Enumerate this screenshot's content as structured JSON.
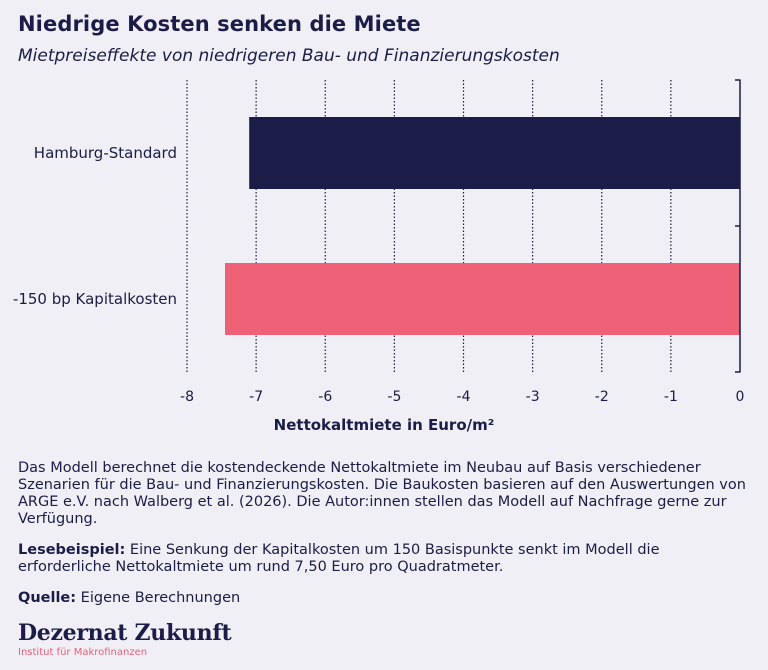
{
  "title": "Niedrige Kosten senken die Miete",
  "subtitle": "Mietpreiseffekte von niedrigeren Bau- und Finanzierungskosten",
  "colors": {
    "series": [
      "#1b1c47",
      "#ee6177"
    ],
    "text": "#1b1c47",
    "background": "#f0eff5"
  },
  "chart_data": {
    "type": "bar",
    "orientation": "horizontal",
    "categories": [
      "Hamburg-Standard",
      "-150 bp Kapitalkosten"
    ],
    "values": [
      -7.1,
      -7.45
    ],
    "xlabel": "Nettokaltmiete in Euro/m²",
    "ylabel": "",
    "xlim": [
      -8,
      0
    ],
    "xticks": [
      "-8",
      "-7",
      "-6",
      "-5",
      "-4",
      "-3",
      "-2",
      "-1",
      "0"
    ],
    "grid": "vertical dotted"
  },
  "notes": {
    "paragraph": "Das Modell berechnet die kostendeckende Nettokaltmiete im Neubau auf Basis verschiedener Szenarien für die Bau- und Finanzierungskosten. Die Baukosten basieren auf den Auswertungen von ARGE e.V. nach Walberg et al. (2026). Die Autor:innen stellen das Modell auf Nachfrage gerne zur Verfügung.",
    "example_label": "Lesebeispiel:",
    "example_text": " Eine Senkung der Kapitalkosten um 150 Basispunkte senkt im Modell die erforderliche Nettokaltmiete um rund 7,50 Euro pro Quadratmeter.",
    "source_label": "Quelle:",
    "source_text": " Eigene Berechnungen"
  },
  "brand": {
    "name": "Dezernat Zukunft",
    "subtitle": "Institut für Makrofinanzen"
  }
}
